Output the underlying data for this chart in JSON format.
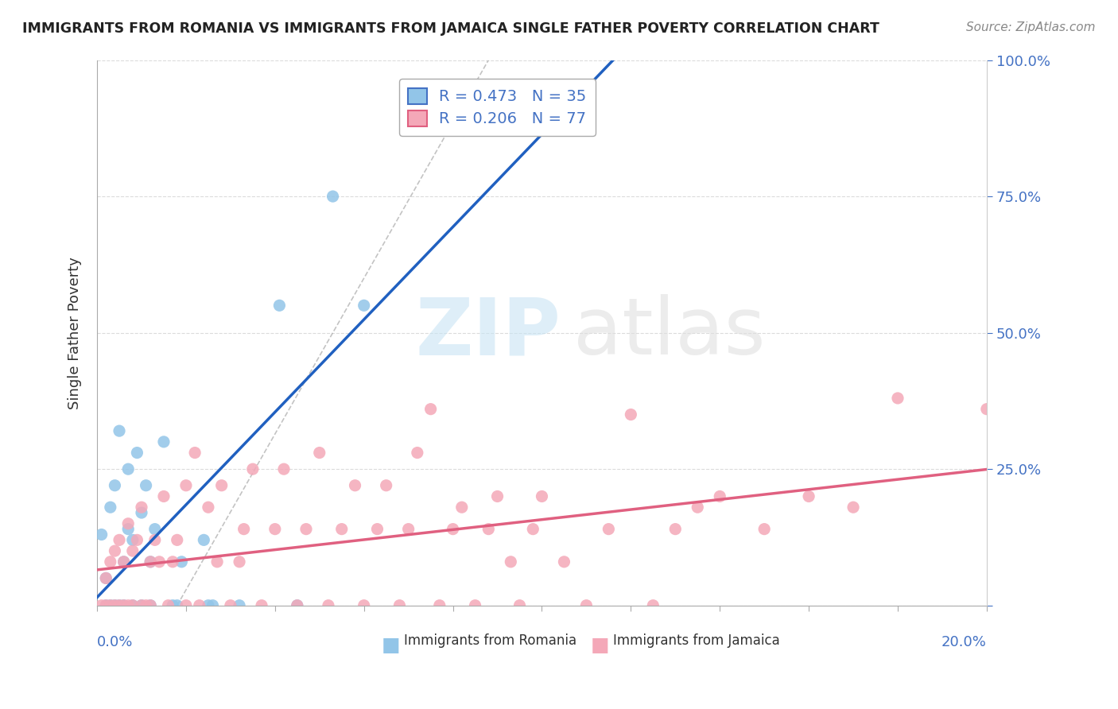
{
  "title": "IMMIGRANTS FROM ROMANIA VS IMMIGRANTS FROM JAMAICA SINGLE FATHER POVERTY CORRELATION CHART",
  "source": "Source: ZipAtlas.com",
  "ylabel": "Single Father Poverty",
  "legend_romania": "R = 0.473   N = 35",
  "legend_jamaica": "R = 0.206   N = 77",
  "romania_color": "#92C5E8",
  "jamaica_color": "#F4A8B8",
  "romania_line_color": "#2060C0",
  "jamaica_line_color": "#E06080",
  "romania_points": [
    [
      0.001,
      0.13
    ],
    [
      0.002,
      0.0
    ],
    [
      0.002,
      0.05
    ],
    [
      0.003,
      0.0
    ],
    [
      0.003,
      0.18
    ],
    [
      0.004,
      0.22
    ],
    [
      0.004,
      0.0
    ],
    [
      0.005,
      0.32
    ],
    [
      0.005,
      0.0
    ],
    [
      0.006,
      0.0
    ],
    [
      0.006,
      0.08
    ],
    [
      0.007,
      0.14
    ],
    [
      0.007,
      0.25
    ],
    [
      0.008,
      0.0
    ],
    [
      0.008,
      0.12
    ],
    [
      0.009,
      0.28
    ],
    [
      0.01,
      0.17
    ],
    [
      0.01,
      0.0
    ],
    [
      0.011,
      0.22
    ],
    [
      0.012,
      0.0
    ],
    [
      0.012,
      0.08
    ],
    [
      0.013,
      0.14
    ],
    [
      0.015,
      0.3
    ],
    [
      0.017,
      0.0
    ],
    [
      0.018,
      0.0
    ],
    [
      0.019,
      0.08
    ],
    [
      0.024,
      0.12
    ],
    [
      0.025,
      0.0
    ],
    [
      0.026,
      0.0
    ],
    [
      0.032,
      0.0
    ],
    [
      0.041,
      0.55
    ],
    [
      0.045,
      0.0
    ],
    [
      0.053,
      0.75
    ],
    [
      0.06,
      0.55
    ],
    [
      0.085,
      0.95
    ]
  ],
  "jamaica_points": [
    [
      0.001,
      0.0
    ],
    [
      0.002,
      0.0
    ],
    [
      0.002,
      0.05
    ],
    [
      0.003,
      0.0
    ],
    [
      0.003,
      0.08
    ],
    [
      0.004,
      0.0
    ],
    [
      0.004,
      0.1
    ],
    [
      0.005,
      0.0
    ],
    [
      0.005,
      0.12
    ],
    [
      0.006,
      0.0
    ],
    [
      0.006,
      0.08
    ],
    [
      0.007,
      0.15
    ],
    [
      0.007,
      0.0
    ],
    [
      0.008,
      0.0
    ],
    [
      0.008,
      0.1
    ],
    [
      0.009,
      0.12
    ],
    [
      0.01,
      0.0
    ],
    [
      0.01,
      0.18
    ],
    [
      0.011,
      0.0
    ],
    [
      0.012,
      0.08
    ],
    [
      0.012,
      0.0
    ],
    [
      0.013,
      0.12
    ],
    [
      0.014,
      0.08
    ],
    [
      0.015,
      0.2
    ],
    [
      0.016,
      0.0
    ],
    [
      0.017,
      0.08
    ],
    [
      0.018,
      0.12
    ],
    [
      0.02,
      0.0
    ],
    [
      0.02,
      0.22
    ],
    [
      0.022,
      0.28
    ],
    [
      0.023,
      0.0
    ],
    [
      0.025,
      0.18
    ],
    [
      0.027,
      0.08
    ],
    [
      0.028,
      0.22
    ],
    [
      0.03,
      0.0
    ],
    [
      0.032,
      0.08
    ],
    [
      0.033,
      0.14
    ],
    [
      0.035,
      0.25
    ],
    [
      0.037,
      0.0
    ],
    [
      0.04,
      0.14
    ],
    [
      0.042,
      0.25
    ],
    [
      0.045,
      0.0
    ],
    [
      0.047,
      0.14
    ],
    [
      0.05,
      0.28
    ],
    [
      0.052,
      0.0
    ],
    [
      0.055,
      0.14
    ],
    [
      0.058,
      0.22
    ],
    [
      0.06,
      0.0
    ],
    [
      0.063,
      0.14
    ],
    [
      0.065,
      0.22
    ],
    [
      0.068,
      0.0
    ],
    [
      0.07,
      0.14
    ],
    [
      0.072,
      0.28
    ],
    [
      0.075,
      0.36
    ],
    [
      0.077,
      0.0
    ],
    [
      0.08,
      0.14
    ],
    [
      0.082,
      0.18
    ],
    [
      0.085,
      0.0
    ],
    [
      0.088,
      0.14
    ],
    [
      0.09,
      0.2
    ],
    [
      0.093,
      0.08
    ],
    [
      0.095,
      0.0
    ],
    [
      0.098,
      0.14
    ],
    [
      0.1,
      0.2
    ],
    [
      0.105,
      0.08
    ],
    [
      0.11,
      0.0
    ],
    [
      0.115,
      0.14
    ],
    [
      0.12,
      0.35
    ],
    [
      0.125,
      0.0
    ],
    [
      0.13,
      0.14
    ],
    [
      0.135,
      0.18
    ],
    [
      0.14,
      0.2
    ],
    [
      0.15,
      0.14
    ],
    [
      0.16,
      0.2
    ],
    [
      0.17,
      0.18
    ],
    [
      0.18,
      0.38
    ],
    [
      0.2,
      0.36
    ]
  ],
  "xlim": [
    0.0,
    0.2
  ],
  "ylim": [
    0.0,
    1.0
  ],
  "ytick_vals": [
    0.0,
    0.25,
    0.5,
    0.75,
    1.0
  ],
  "ytick_labels": [
    "",
    "25.0%",
    "50.0%",
    "75.0%",
    "100.0%"
  ],
  "bg_color": "#FFFFFF",
  "grid_color": "#CCCCCC"
}
